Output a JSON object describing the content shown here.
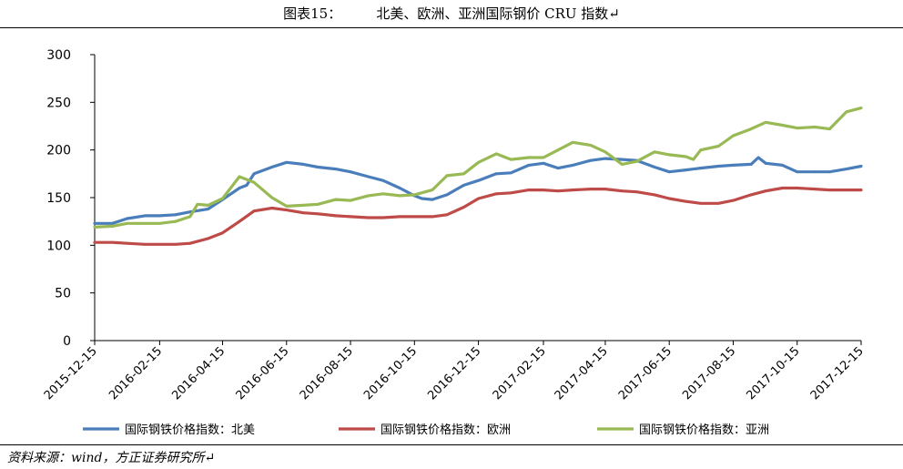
{
  "header": {
    "title": "图表15：        北美、欧洲、亚洲国际钢价 CRU 指数↵"
  },
  "footer": {
    "source": "资料来源：wind，方正证券研究所↵"
  },
  "chart_data": {
    "type": "line",
    "title": "北美、欧洲、亚洲国际钢价 CRU 指数",
    "xlabel": "",
    "ylabel": "",
    "ylim": [
      0,
      300
    ],
    "yticks": [
      0,
      50,
      100,
      150,
      200,
      250,
      300
    ],
    "xlim": [
      "2015-12-15",
      "2017-12-15"
    ],
    "xticks": [
      "2015-12-15",
      "2016-02-15",
      "2016-04-15",
      "2016-06-15",
      "2016-08-15",
      "2016-10-15",
      "2016-12-15",
      "2017-02-15",
      "2017-04-15",
      "2017-06-15",
      "2017-08-15",
      "2017-10-15",
      "2017-12-15"
    ],
    "grid": false,
    "legend_position": "bottom",
    "series": [
      {
        "name": "国际钢铁价格指数：北美",
        "color": "#4a7ebb",
        "points": [
          [
            "2015-12-15",
            123
          ],
          [
            "2016-01-01",
            123
          ],
          [
            "2016-01-15",
            128
          ],
          [
            "2016-02-01",
            131
          ],
          [
            "2016-02-15",
            131
          ],
          [
            "2016-03-01",
            132
          ],
          [
            "2016-03-15",
            135
          ],
          [
            "2016-04-01",
            138
          ],
          [
            "2016-04-15",
            148
          ],
          [
            "2016-05-01",
            160
          ],
          [
            "2016-05-08",
            163
          ],
          [
            "2016-05-15",
            175
          ],
          [
            "2016-06-01",
            182
          ],
          [
            "2016-06-15",
            187
          ],
          [
            "2016-07-01",
            185
          ],
          [
            "2016-07-15",
            182
          ],
          [
            "2016-08-01",
            180
          ],
          [
            "2016-08-15",
            177
          ],
          [
            "2016-09-01",
            172
          ],
          [
            "2016-09-15",
            168
          ],
          [
            "2016-10-01",
            160
          ],
          [
            "2016-10-15",
            152
          ],
          [
            "2016-10-22",
            149
          ],
          [
            "2016-11-01",
            148
          ],
          [
            "2016-11-15",
            153
          ],
          [
            "2016-12-01",
            163
          ],
          [
            "2016-12-15",
            168
          ],
          [
            "2017-01-01",
            175
          ],
          [
            "2017-01-15",
            176
          ],
          [
            "2017-02-01",
            184
          ],
          [
            "2017-02-15",
            186
          ],
          [
            "2017-03-01",
            181
          ],
          [
            "2017-03-15",
            184
          ],
          [
            "2017-04-01",
            189
          ],
          [
            "2017-04-15",
            191
          ],
          [
            "2017-05-01",
            190
          ],
          [
            "2017-05-15",
            189
          ],
          [
            "2017-06-01",
            182
          ],
          [
            "2017-06-15",
            177
          ],
          [
            "2017-07-01",
            179
          ],
          [
            "2017-07-15",
            181
          ],
          [
            "2017-08-01",
            183
          ],
          [
            "2017-08-15",
            184
          ],
          [
            "2017-09-01",
            185
          ],
          [
            "2017-09-08",
            192
          ],
          [
            "2017-09-15",
            186
          ],
          [
            "2017-10-01",
            184
          ],
          [
            "2017-10-15",
            177
          ],
          [
            "2017-11-01",
            177
          ],
          [
            "2017-11-15",
            177
          ],
          [
            "2017-12-01",
            180
          ],
          [
            "2017-12-15",
            183
          ]
        ]
      },
      {
        "name": "国际钢铁价格指数：欧洲",
        "color": "#be4b48",
        "points": [
          [
            "2015-12-15",
            103
          ],
          [
            "2016-01-01",
            103
          ],
          [
            "2016-01-15",
            102
          ],
          [
            "2016-02-01",
            101
          ],
          [
            "2016-02-15",
            101
          ],
          [
            "2016-03-01",
            101
          ],
          [
            "2016-03-15",
            102
          ],
          [
            "2016-04-01",
            107
          ],
          [
            "2016-04-15",
            113
          ],
          [
            "2016-05-01",
            125
          ],
          [
            "2016-05-15",
            136
          ],
          [
            "2016-06-01",
            139
          ],
          [
            "2016-06-15",
            137
          ],
          [
            "2016-07-01",
            134
          ],
          [
            "2016-07-15",
            133
          ],
          [
            "2016-08-01",
            131
          ],
          [
            "2016-08-15",
            130
          ],
          [
            "2016-09-01",
            129
          ],
          [
            "2016-09-15",
            129
          ],
          [
            "2016-10-01",
            130
          ],
          [
            "2016-10-15",
            130
          ],
          [
            "2016-11-01",
            130
          ],
          [
            "2016-11-15",
            132
          ],
          [
            "2016-12-01",
            140
          ],
          [
            "2016-12-15",
            149
          ],
          [
            "2017-01-01",
            154
          ],
          [
            "2017-01-15",
            155
          ],
          [
            "2017-02-01",
            158
          ],
          [
            "2017-02-15",
            158
          ],
          [
            "2017-03-01",
            157
          ],
          [
            "2017-03-15",
            158
          ],
          [
            "2017-04-01",
            159
          ],
          [
            "2017-04-15",
            159
          ],
          [
            "2017-05-01",
            157
          ],
          [
            "2017-05-15",
            156
          ],
          [
            "2017-06-01",
            153
          ],
          [
            "2017-06-15",
            149
          ],
          [
            "2017-07-01",
            146
          ],
          [
            "2017-07-15",
            144
          ],
          [
            "2017-08-01",
            144
          ],
          [
            "2017-08-15",
            147
          ],
          [
            "2017-09-01",
            153
          ],
          [
            "2017-09-15",
            157
          ],
          [
            "2017-10-01",
            160
          ],
          [
            "2017-10-15",
            160
          ],
          [
            "2017-11-01",
            159
          ],
          [
            "2017-11-15",
            158
          ],
          [
            "2017-12-01",
            158
          ],
          [
            "2017-12-15",
            158
          ]
        ]
      },
      {
        "name": "国际钢铁价格指数：亚洲",
        "color": "#98b954",
        "points": [
          [
            "2015-12-15",
            119
          ],
          [
            "2016-01-01",
            120
          ],
          [
            "2016-01-15",
            123
          ],
          [
            "2016-02-01",
            123
          ],
          [
            "2016-02-15",
            123
          ],
          [
            "2016-03-01",
            125
          ],
          [
            "2016-03-15",
            130
          ],
          [
            "2016-03-22",
            143
          ],
          [
            "2016-04-01",
            142
          ],
          [
            "2016-04-15",
            149
          ],
          [
            "2016-05-01",
            172
          ],
          [
            "2016-05-15",
            166
          ],
          [
            "2016-06-01",
            150
          ],
          [
            "2016-06-15",
            141
          ],
          [
            "2016-07-01",
            142
          ],
          [
            "2016-07-15",
            143
          ],
          [
            "2016-08-01",
            148
          ],
          [
            "2016-08-15",
            147
          ],
          [
            "2016-09-01",
            152
          ],
          [
            "2016-09-15",
            154
          ],
          [
            "2016-10-01",
            152
          ],
          [
            "2016-10-15",
            153
          ],
          [
            "2016-11-01",
            158
          ],
          [
            "2016-11-15",
            173
          ],
          [
            "2016-12-01",
            175
          ],
          [
            "2016-12-15",
            187
          ],
          [
            "2017-01-01",
            196
          ],
          [
            "2017-01-15",
            190
          ],
          [
            "2017-02-01",
            192
          ],
          [
            "2017-02-15",
            192
          ],
          [
            "2017-03-01",
            200
          ],
          [
            "2017-03-15",
            208
          ],
          [
            "2017-04-01",
            205
          ],
          [
            "2017-04-15",
            198
          ],
          [
            "2017-05-01",
            185
          ],
          [
            "2017-05-15",
            188
          ],
          [
            "2017-06-01",
            198
          ],
          [
            "2017-06-15",
            195
          ],
          [
            "2017-07-01",
            193
          ],
          [
            "2017-07-08",
            190
          ],
          [
            "2017-07-15",
            200
          ],
          [
            "2017-08-01",
            204
          ],
          [
            "2017-08-15",
            215
          ],
          [
            "2017-09-01",
            222
          ],
          [
            "2017-09-15",
            229
          ],
          [
            "2017-10-01",
            226
          ],
          [
            "2017-10-15",
            223
          ],
          [
            "2017-11-01",
            224
          ],
          [
            "2017-11-15",
            222
          ],
          [
            "2017-12-01",
            240
          ],
          [
            "2017-12-15",
            244
          ]
        ]
      }
    ]
  }
}
